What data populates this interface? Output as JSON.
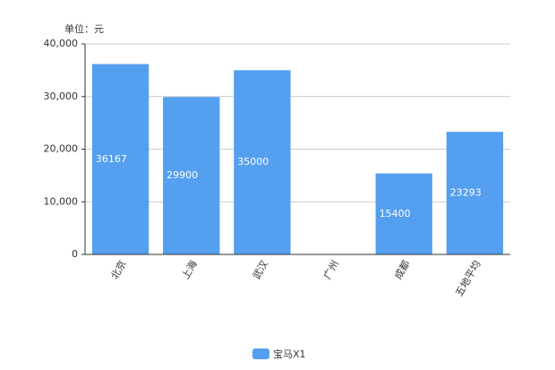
{
  "chart_data": {
    "type": "bar",
    "unit_label": "单位：元",
    "categories": [
      "北京",
      "上海",
      "武汉",
      "广州",
      "成都",
      "五地平均"
    ],
    "series": [
      {
        "name": "宝马X1",
        "color": "#549ff0",
        "values": [
          36167,
          29900,
          35000,
          0,
          15400,
          23293
        ]
      }
    ],
    "ylim": [
      0,
      40000
    ],
    "yticks": [
      0,
      {
        "value": 10000,
        "label": "10,000"
      },
      {
        "value": 20000,
        "label": "20,000"
      },
      {
        "value": 30000,
        "label": "30,000"
      },
      {
        "value": 40000,
        "label": "40,000"
      }
    ],
    "grid": true
  }
}
